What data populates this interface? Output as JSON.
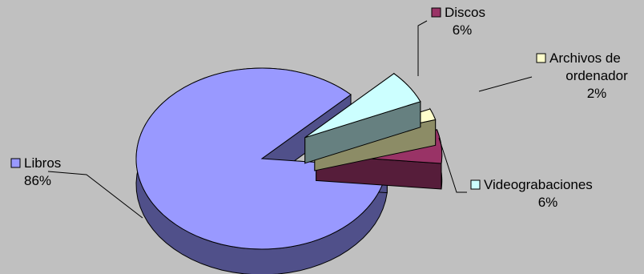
{
  "chart_data": {
    "type": "pie",
    "style": "3d-exploded",
    "background": "#c0c0c0",
    "legend": "none",
    "slices": [
      {
        "name": "Libros",
        "value": 86,
        "label_lines": [
          "Libros",
          "86%"
        ],
        "top": "#9999ff",
        "side": "#50508a"
      },
      {
        "name": "Discos",
        "value": 6,
        "label_lines": [
          "Discos",
          "6%"
        ],
        "top": "#993366",
        "side": "#561d3a"
      },
      {
        "name": "Archivos de ordenador",
        "value": 2,
        "label_lines": [
          "Archivos de",
          "ordenador",
          "2%"
        ],
        "top": "#ffffcc",
        "side": "#8c8c66"
      },
      {
        "name": "Videograbaciones",
        "value": 6,
        "label_lines": [
          "Videograbaciones",
          "6%"
        ],
        "top": "#ccffff",
        "side": "#668080"
      }
    ]
  }
}
